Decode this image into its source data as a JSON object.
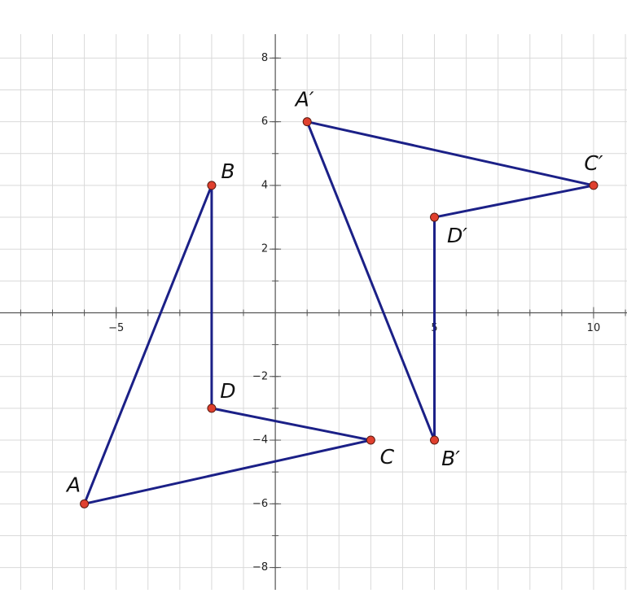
{
  "chart_data": {
    "type": "polygon",
    "xlim": [
      -8.65,
      11.05
    ],
    "ylim": [
      -8.7,
      8.75
    ],
    "xticks": [
      {
        "value": -5,
        "label": "−5"
      },
      5,
      10
    ],
    "yticks": [
      {
        "value": -8,
        "label": "−8"
      },
      {
        "value": -6,
        "label": "−6"
      },
      {
        "value": -4,
        "label": "−4"
      },
      {
        "value": -2,
        "label": "−2"
      },
      2,
      4,
      6,
      8
    ],
    "grid": true,
    "shapes": [
      {
        "color": "#1b2087",
        "point_color": "#e0402e",
        "labels": [
          "A",
          "B",
          "D",
          "C"
        ],
        "x": [
          -6,
          -2,
          -2,
          3
        ],
        "y": [
          -6,
          4,
          -3,
          -4
        ]
      },
      {
        "color": "#1b2087",
        "point_color": "#e0402e",
        "labels": [
          "A′",
          "C′",
          "D′",
          "B′"
        ],
        "x": [
          1,
          10,
          5,
          5
        ],
        "y": [
          6,
          4,
          3,
          -4
        ]
      }
    ]
  }
}
